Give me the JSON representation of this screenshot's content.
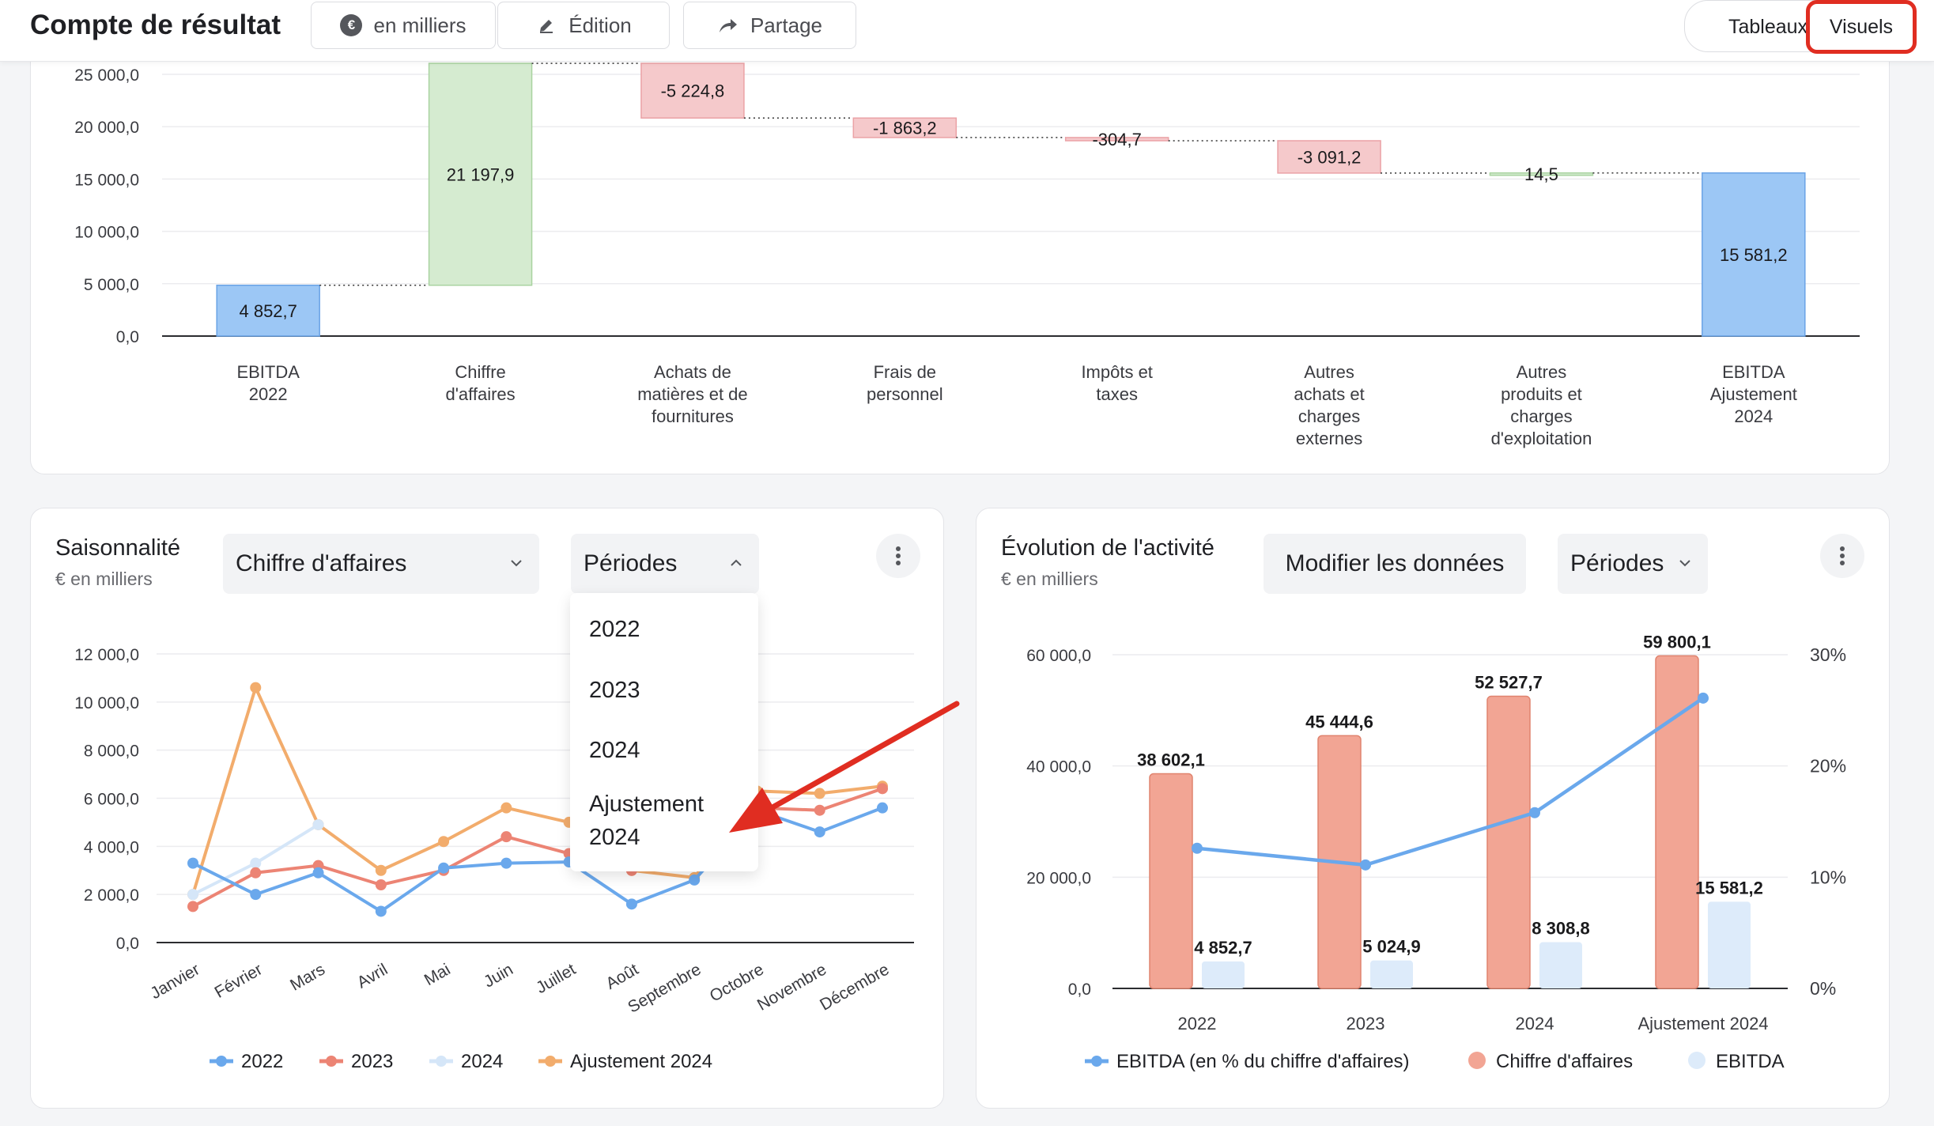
{
  "header": {
    "title": "Compte de résultat",
    "unit_button": "en milliers",
    "unit_icon": "euro-icon",
    "edit_button": "Édition",
    "edit_icon": "pencil-icon",
    "share_button": "Partage",
    "share_icon": "share-arrow-icon",
    "view_toggle": {
      "tables": "Tableaux",
      "visuals": "Visuels",
      "active": "Visuels",
      "highlight_color": "#e02d21"
    }
  },
  "waterfall": {
    "chart_data": {
      "type": "bar",
      "subtype": "waterfall",
      "categories": [
        [
          "EBITDA",
          "2022"
        ],
        [
          "Chiffre",
          "d'affaires"
        ],
        [
          "Achats de",
          "matières et de",
          "fournitures"
        ],
        [
          "Frais de",
          "personnel"
        ],
        [
          "Impôts et",
          "taxes"
        ],
        [
          "Autres",
          "achats et",
          "charges",
          "externes"
        ],
        [
          "Autres",
          "produits et",
          "charges",
          "d'exploitation"
        ],
        [
          "EBITDA",
          "Ajustement",
          "2024"
        ]
      ],
      "values": [
        4852.7,
        21197.9,
        -5224.8,
        -1863.2,
        -304.7,
        -3091.2,
        14.5,
        15581.2
      ],
      "value_labels": [
        "4 852,7",
        "21 197,9",
        "-5 224,8",
        "-1 863,2",
        "-304,7",
        "-3 091,2",
        "14,5",
        "15 581,2"
      ],
      "kinds": [
        "total",
        "increase",
        "decrease",
        "decrease",
        "decrease",
        "decrease",
        "increase",
        "total"
      ],
      "y_ticks": [
        0,
        5000,
        10000,
        15000,
        20000,
        25000
      ],
      "y_tick_labels": [
        "0,0",
        "5 000,0",
        "10 000,0",
        "15 000,0",
        "20 000,0",
        "25 000,0"
      ],
      "ylim": [
        0,
        26100
      ],
      "colors": {
        "total": "#9cc7f5",
        "increase": "#d5ebd0",
        "decrease": "#f5c9cb"
      }
    }
  },
  "seasonality": {
    "title": "Saisonnalité",
    "subtitle": "€ en milliers",
    "metric_select": "Chiffre d'affaires",
    "period_select": "Périodes",
    "period_options": [
      "2022",
      "2023",
      "2024",
      "Ajustement 2024"
    ],
    "chart_data": {
      "type": "line",
      "x": [
        "Janvier",
        "Février",
        "Mars",
        "Avril",
        "Mai",
        "Juin",
        "Juillet",
        "Août",
        "Septembre",
        "Octobre",
        "Novembre",
        "Décembre"
      ],
      "series": [
        {
          "name": "2022",
          "color": "#6aa8ec",
          "values": [
            3300,
            2000,
            2900,
            1300,
            3100,
            3300,
            3350,
            1600,
            2600,
            5500,
            4600,
            5600
          ]
        },
        {
          "name": "2023",
          "color": "#ec8474",
          "values": [
            1500,
            2900,
            3200,
            2400,
            3000,
            4400,
            3700,
            3000,
            3200,
            5600,
            5500,
            6400
          ]
        },
        {
          "name": "2024",
          "color": "#d5e6f8",
          "values": [
            2000,
            3300,
            4900,
            null,
            null,
            null,
            null,
            null,
            null,
            null,
            null,
            null
          ]
        },
        {
          "name": "Ajustement 2024",
          "color": "#f2ac6c",
          "values": [
            2000,
            10600,
            4900,
            3000,
            4200,
            5600,
            5000,
            3000,
            2700,
            6300,
            6200,
            6500
          ]
        }
      ],
      "y_ticks": [
        0,
        2000,
        4000,
        6000,
        8000,
        10000,
        12000
      ],
      "y_tick_labels": [
        "0,0",
        "2 000,0",
        "4 000,0",
        "6 000,0",
        "8 000,0",
        "10 000,0",
        "12 000,0"
      ],
      "ylim": [
        0,
        12000
      ],
      "legend_position": "bottom"
    }
  },
  "evolution": {
    "title": "Évolution de l'activité",
    "subtitle": "€ en milliers",
    "edit_button": "Modifier les données",
    "period_select": "Périodes",
    "chart_data": {
      "type": "bar",
      "categories": [
        "2022",
        "2023",
        "2024",
        "Ajustement 2024"
      ],
      "series": [
        {
          "name": "Chiffre d'affaires",
          "color": "#f2a594",
          "values": [
            38602.1,
            45444.6,
            52527.7,
            59800.1
          ],
          "labels": [
            "38 602,1",
            "45 444,6",
            "52 527,7",
            "59 800,1"
          ]
        },
        {
          "name": "EBITDA",
          "color": "#ddebfa",
          "values": [
            4852.7,
            5024.9,
            8308.8,
            15581.2
          ],
          "labels": [
            "4 852,7",
            "5 024,9",
            "8 308,8",
            "15 581,2"
          ]
        },
        {
          "name": "EBITDA (en % du chiffre d'affaires)",
          "color": "#6aa8ec",
          "type": "line",
          "axis": "right",
          "values": [
            12.6,
            11.1,
            15.8,
            26.1
          ]
        }
      ],
      "y_ticks": [
        0,
        20000,
        40000,
        60000
      ],
      "y_tick_labels": [
        "0,0",
        "20 000,0",
        "40 000,0",
        "60 000,0"
      ],
      "ylim": [
        0,
        60000
      ],
      "y2_ticks": [
        0,
        10,
        20,
        30
      ],
      "y2_tick_labels": [
        "0%",
        "10%",
        "20%",
        "30%"
      ],
      "y2lim": [
        0,
        30
      ],
      "legend": [
        "EBITDA (en % du chiffre d'affaires)",
        "Chiffre d'affaires",
        "EBITDA"
      ],
      "legend_position": "bottom"
    }
  },
  "annotation": {
    "arrow_color": "#e02d21"
  }
}
